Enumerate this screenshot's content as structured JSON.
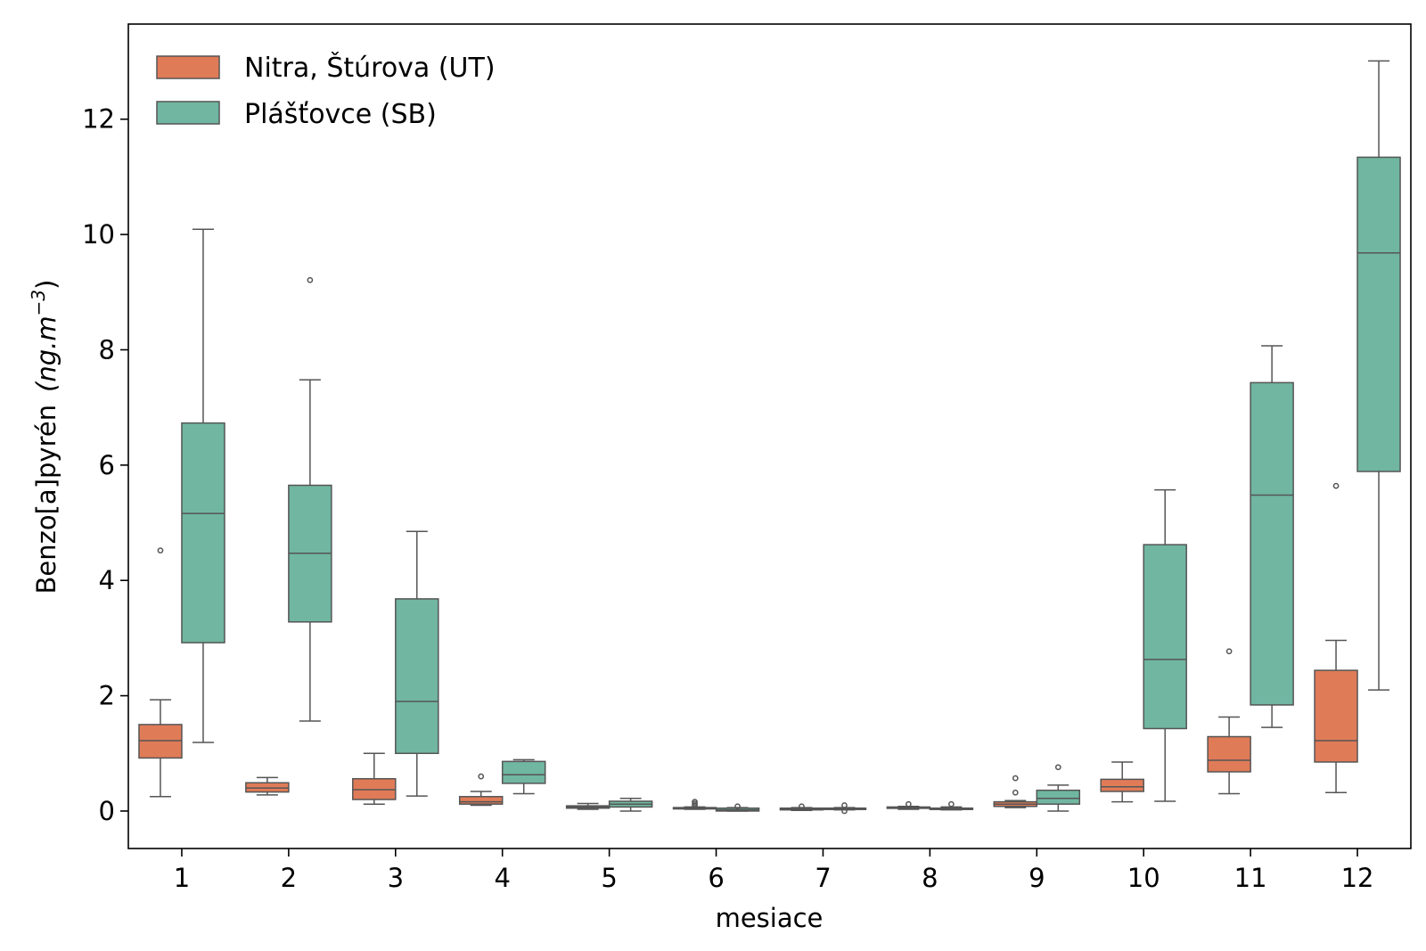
{
  "chart_data": {
    "type": "box",
    "xlabel": "mesiace",
    "ylabel_main": "Benzo[a]pyrén",
    "ylabel_unit": "(ng.m",
    "ylabel_exp": "−3",
    "ylabel_close": ")",
    "ylim": [
      -0.65,
      13.65
    ],
    "yticks": [
      0,
      2,
      4,
      6,
      8,
      10,
      12
    ],
    "categories": [
      "1",
      "2",
      "3",
      "4",
      "5",
      "6",
      "7",
      "8",
      "9",
      "10",
      "11",
      "12"
    ],
    "legend_position": "top-left",
    "colors": {
      "Nitra": "#e07b58",
      "Plastovce": "#70b6a1",
      "outline": "#555555"
    },
    "series": [
      {
        "name": "Nitra, Štúrova (UT)",
        "color": "#e07b58",
        "boxes": [
          {
            "low": 0.25,
            "q1": 0.92,
            "median": 1.22,
            "q3": 1.5,
            "high": 1.93,
            "outliers": [
              4.52
            ]
          },
          {
            "low": 0.28,
            "q1": 0.33,
            "median": 0.4,
            "q3": 0.49,
            "high": 0.58,
            "outliers": []
          },
          {
            "low": 0.12,
            "q1": 0.2,
            "median": 0.37,
            "q3": 0.56,
            "high": 1.0,
            "outliers": []
          },
          {
            "low": 0.1,
            "q1": 0.12,
            "median": 0.16,
            "q3": 0.25,
            "high": 0.34,
            "outliers": [
              0.6
            ]
          },
          {
            "low": 0.03,
            "q1": 0.05,
            "median": 0.07,
            "q3": 0.09,
            "high": 0.13,
            "outliers": []
          },
          {
            "low": 0.03,
            "q1": 0.04,
            "median": 0.05,
            "q3": 0.06,
            "high": 0.07,
            "outliers": [
              0.1,
              0.13,
              0.16
            ]
          },
          {
            "low": 0.01,
            "q1": 0.02,
            "median": 0.03,
            "q3": 0.05,
            "high": 0.06,
            "outliers": [
              0.08
            ]
          },
          {
            "low": 0.03,
            "q1": 0.05,
            "median": 0.06,
            "q3": 0.07,
            "high": 0.08,
            "outliers": [
              0.12
            ]
          },
          {
            "low": 0.06,
            "q1": 0.08,
            "median": 0.12,
            "q3": 0.16,
            "high": 0.18,
            "outliers": [
              0.32,
              0.57
            ]
          },
          {
            "low": 0.16,
            "q1": 0.34,
            "median": 0.42,
            "q3": 0.55,
            "high": 0.85,
            "outliers": []
          },
          {
            "low": 0.3,
            "q1": 0.68,
            "median": 0.88,
            "q3": 1.29,
            "high": 1.63,
            "outliers": [
              2.77
            ]
          },
          {
            "low": 0.32,
            "q1": 0.85,
            "median": 1.22,
            "q3": 2.44,
            "high": 2.96,
            "outliers": [
              5.64
            ]
          }
        ]
      },
      {
        "name": "Plášťovce (SB)",
        "color": "#70b6a1",
        "boxes": [
          {
            "low": 1.19,
            "q1": 2.92,
            "median": 5.16,
            "q3": 6.73,
            "high": 10.09,
            "outliers": []
          },
          {
            "low": 1.56,
            "q1": 3.28,
            "median": 4.47,
            "q3": 5.65,
            "high": 7.48,
            "outliers": [
              9.21
            ]
          },
          {
            "low": 0.26,
            "q1": 1.0,
            "median": 1.9,
            "q3": 3.68,
            "high": 4.85,
            "outliers": []
          },
          {
            "low": 0.3,
            "q1": 0.48,
            "median": 0.63,
            "q3": 0.86,
            "high": 0.89,
            "outliers": []
          },
          {
            "low": 0.0,
            "q1": 0.07,
            "median": 0.12,
            "q3": 0.17,
            "high": 0.22,
            "outliers": []
          },
          {
            "low": 0.0,
            "q1": 0.0,
            "median": 0.02,
            "q3": 0.05,
            "high": 0.06,
            "outliers": [
              0.08
            ]
          },
          {
            "low": 0.02,
            "q1": 0.03,
            "median": 0.04,
            "q3": 0.05,
            "high": 0.06,
            "outliers": [
              0.0,
              0.1
            ]
          },
          {
            "low": 0.02,
            "q1": 0.03,
            "median": 0.04,
            "q3": 0.05,
            "high": 0.07,
            "outliers": [
              0.12
            ]
          },
          {
            "low": 0.0,
            "q1": 0.12,
            "median": 0.22,
            "q3": 0.36,
            "high": 0.45,
            "outliers": [
              0.76
            ]
          },
          {
            "low": 0.17,
            "q1": 1.43,
            "median": 2.63,
            "q3": 4.62,
            "high": 5.57,
            "outliers": []
          },
          {
            "low": 1.45,
            "q1": 1.84,
            "median": 5.48,
            "q3": 7.43,
            "high": 8.07,
            "outliers": []
          },
          {
            "low": 2.1,
            "q1": 5.89,
            "median": 9.68,
            "q3": 11.34,
            "high": 13.01,
            "outliers": []
          }
        ]
      }
    ]
  }
}
